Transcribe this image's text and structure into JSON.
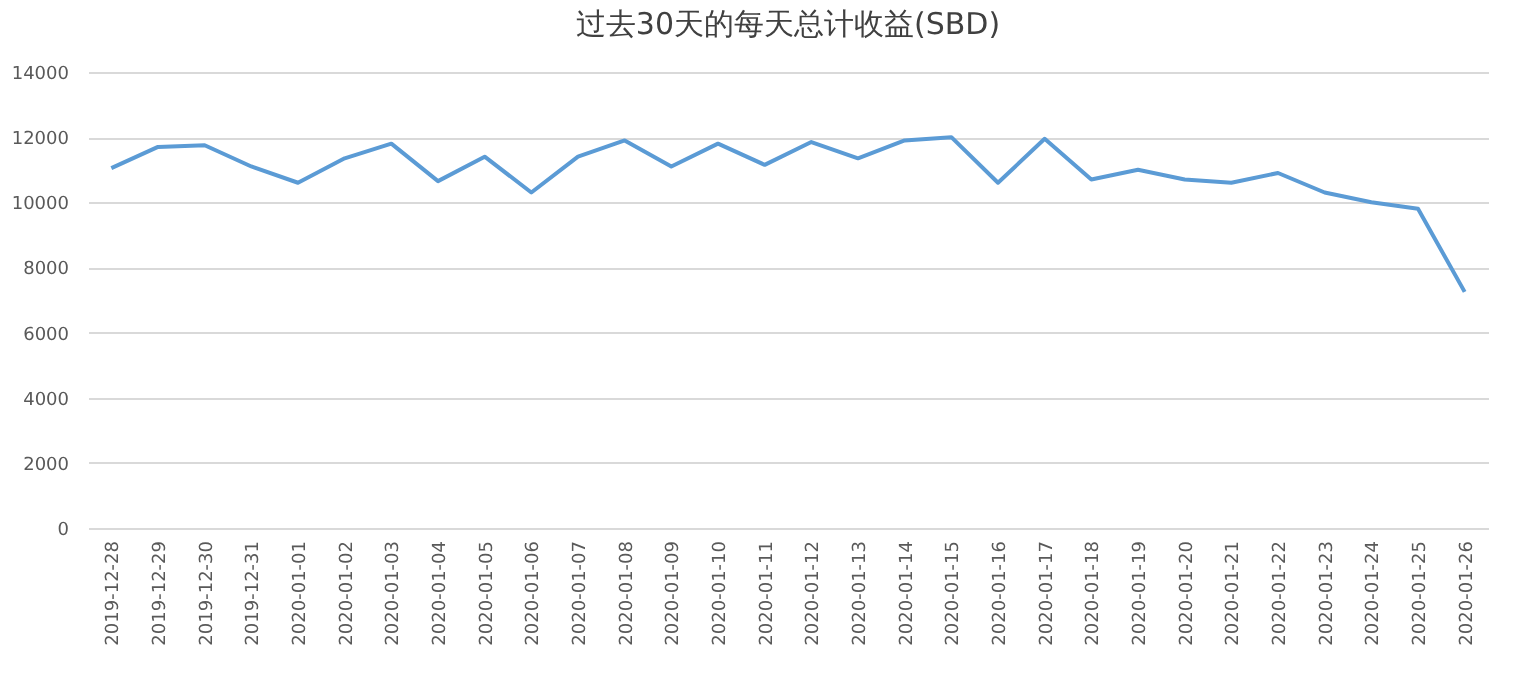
{
  "chart_data": {
    "type": "line",
    "title": "过去30天的每天总计收益(SBD)",
    "categories": [
      "2019-12-28",
      "2019-12-29",
      "2019-12-30",
      "2019-12-31",
      "2020-01-01",
      "2020-01-02",
      "2020-01-03",
      "2020-01-04",
      "2020-01-05",
      "2020-01-06",
      "2020-01-07",
      "2020-01-08",
      "2020-01-09",
      "2020-01-10",
      "2020-01-11",
      "2020-01-12",
      "2020-01-13",
      "2020-01-14",
      "2020-01-15",
      "2020-01-16",
      "2020-01-17",
      "2020-01-18",
      "2020-01-19",
      "2020-01-20",
      "2020-01-21",
      "2020-01-22",
      "2020-01-23",
      "2020-01-24",
      "2020-01-25",
      "2020-01-26"
    ],
    "series": [
      {
        "color": "#5b9bd5",
        "values": [
          11050,
          11700,
          11750,
          11100,
          10600,
          11350,
          11800,
          10650,
          11400,
          10300,
          11400,
          11900,
          11100,
          11800,
          11150,
          11850,
          11350,
          11900,
          12000,
          10600,
          11950,
          10700,
          11000,
          10700,
          10600,
          10900,
          10300,
          10000,
          9800,
          7250
        ]
      }
    ],
    "ylim": [
      0,
      14000
    ],
    "yticks": [
      0,
      2000,
      4000,
      6000,
      8000,
      10000,
      12000,
      14000
    ],
    "grid": "y",
    "marker": "none",
    "line_style": "solid"
  }
}
